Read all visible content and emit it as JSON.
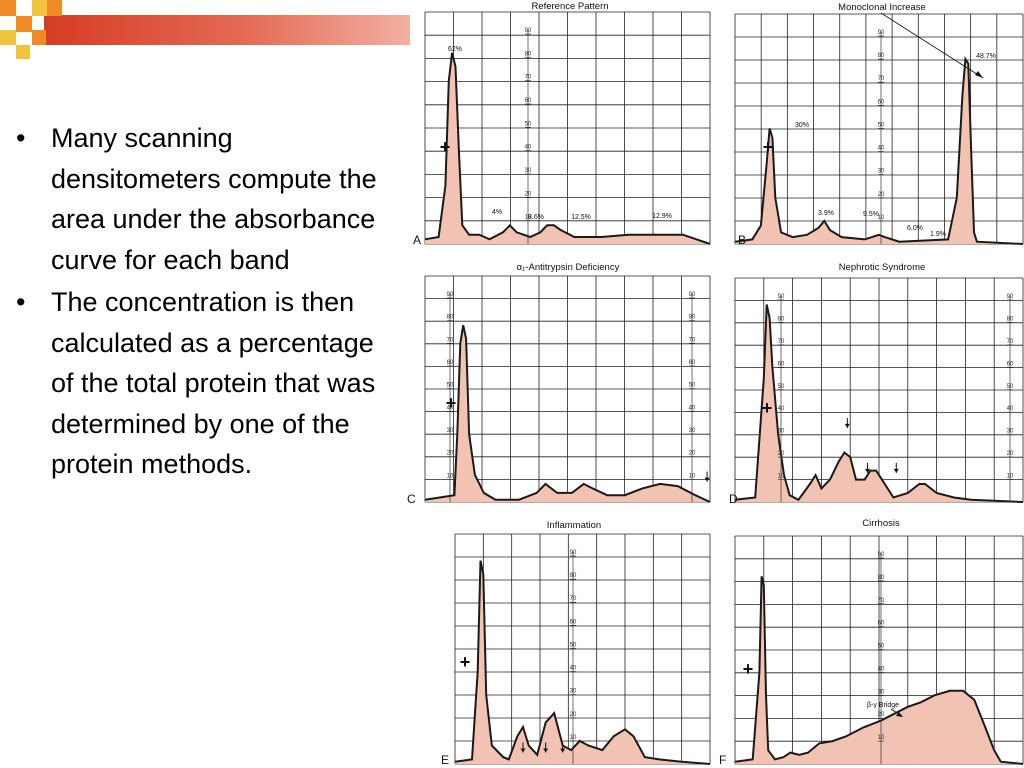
{
  "bullets": [
    "Many scanning densitometers compute the area under the absorbance curve for each band",
    "The concentration is then calculated as a percentage of the total protein that was determined by one of the protein methods."
  ],
  "colors": {
    "title_bar": "#d9442b",
    "deco_orange": "#f08a24",
    "deco_yellow": "#f2c43d",
    "curve_fill": "#f2c3b3"
  },
  "ticks": [
    "10",
    "20",
    "30",
    "40",
    "50",
    "60",
    "70",
    "80",
    "90"
  ],
  "panels": [
    {
      "title": "Reference Pattern",
      "letter": "A",
      "plus": "+",
      "labels": [
        "62%",
        "4%",
        "8.6%",
        "12.5%",
        "12.9%"
      ],
      "curve": [
        [
          0,
          2
        ],
        [
          4,
          3
        ],
        [
          6,
          25
        ],
        [
          7,
          70
        ],
        [
          8,
          82
        ],
        [
          9,
          76
        ],
        [
          10,
          40
        ],
        [
          11,
          8
        ],
        [
          13,
          4
        ],
        [
          16,
          4
        ],
        [
          19,
          2
        ],
        [
          23,
          5
        ],
        [
          25,
          8
        ],
        [
          27,
          5
        ],
        [
          31,
          3
        ],
        [
          34,
          5
        ],
        [
          36,
          8
        ],
        [
          38,
          8
        ],
        [
          40,
          6
        ],
        [
          44,
          3
        ],
        [
          52,
          3
        ],
        [
          60,
          4
        ],
        [
          70,
          4
        ],
        [
          76,
          4
        ],
        [
          80,
          2
        ],
        [
          84,
          0
        ]
      ]
    },
    {
      "title": "Monoclonal Increase",
      "letter": "B",
      "plus": "+",
      "labels": [
        "30%",
        "3.9%",
        "9.5%",
        "6.0%",
        "1.9%",
        "48.7%"
      ],
      "curve": [
        [
          0,
          1
        ],
        [
          6,
          2
        ],
        [
          9,
          8
        ],
        [
          11,
          35
        ],
        [
          12,
          50
        ],
        [
          13,
          46
        ],
        [
          14,
          20
        ],
        [
          16,
          5
        ],
        [
          20,
          3
        ],
        [
          25,
          4
        ],
        [
          29,
          7
        ],
        [
          31,
          10
        ],
        [
          33,
          6
        ],
        [
          37,
          3
        ],
        [
          45,
          2
        ],
        [
          50,
          4
        ],
        [
          52,
          3
        ],
        [
          57,
          1
        ],
        [
          74,
          2
        ],
        [
          77,
          20
        ],
        [
          79,
          65
        ],
        [
          80,
          80
        ],
        [
          81,
          78
        ],
        [
          82,
          40
        ],
        [
          83,
          5
        ],
        [
          84,
          1
        ],
        [
          100,
          0
        ]
      ]
    },
    {
      "title": "α₁-Antitrypsin Deficiency",
      "letter": "C",
      "plus": "+",
      "curve": [
        [
          0,
          1
        ],
        [
          10,
          3
        ],
        [
          11,
          30
        ],
        [
          12,
          70
        ],
        [
          13,
          78
        ],
        [
          14,
          72
        ],
        [
          15,
          30
        ],
        [
          17,
          12
        ],
        [
          20,
          4
        ],
        [
          24,
          1
        ],
        [
          32,
          1
        ],
        [
          38,
          4
        ],
        [
          41,
          8
        ],
        [
          45,
          4
        ],
        [
          50,
          4
        ],
        [
          54,
          8
        ],
        [
          57,
          6
        ],
        [
          62,
          3
        ],
        [
          68,
          3
        ],
        [
          74,
          6
        ],
        [
          80,
          8
        ],
        [
          86,
          7
        ],
        [
          92,
          3
        ],
        [
          97,
          0
        ]
      ]
    },
    {
      "title": "Nephrotic Syndrome",
      "letter": "D",
      "plus": "+",
      "curve": [
        [
          0,
          1
        ],
        [
          7,
          2
        ],
        [
          10,
          55
        ],
        [
          11,
          88
        ],
        [
          12,
          82
        ],
        [
          13,
          60
        ],
        [
          15,
          30
        ],
        [
          17,
          12
        ],
        [
          19,
          3
        ],
        [
          22,
          1
        ],
        [
          26,
          8
        ],
        [
          28,
          12
        ],
        [
          30,
          6
        ],
        [
          33,
          10
        ],
        [
          36,
          18
        ],
        [
          38,
          22
        ],
        [
          40,
          20
        ],
        [
          42,
          10
        ],
        [
          45,
          10
        ],
        [
          47,
          14
        ],
        [
          49,
          14
        ],
        [
          51,
          10
        ],
        [
          55,
          2
        ],
        [
          60,
          4
        ],
        [
          64,
          8
        ],
        [
          66,
          8
        ],
        [
          70,
          4
        ],
        [
          76,
          2
        ],
        [
          82,
          1
        ],
        [
          100,
          0
        ]
      ]
    },
    {
      "title": "Inflammation",
      "letter": "E",
      "plus": "+",
      "curve": [
        [
          0,
          1
        ],
        [
          6,
          2
        ],
        [
          8,
          40
        ],
        [
          9,
          88
        ],
        [
          10,
          82
        ],
        [
          11,
          30
        ],
        [
          13,
          8
        ],
        [
          17,
          3
        ],
        [
          19,
          2
        ],
        [
          22,
          12
        ],
        [
          24,
          16
        ],
        [
          26,
          8
        ],
        [
          29,
          4
        ],
        [
          32,
          18
        ],
        [
          35,
          22
        ],
        [
          38,
          8
        ],
        [
          41,
          6
        ],
        [
          44,
          10
        ],
        [
          47,
          8
        ],
        [
          52,
          6
        ],
        [
          56,
          12
        ],
        [
          60,
          15
        ],
        [
          63,
          12
        ],
        [
          67,
          3
        ],
        [
          72,
          2
        ],
        [
          80,
          1
        ],
        [
          90,
          0
        ]
      ]
    },
    {
      "title": "Cirrhosis",
      "letter": "F",
      "plus": "+",
      "annot": "β-γ Bridge",
      "curve": [
        [
          0,
          1
        ],
        [
          8,
          2
        ],
        [
          11,
          40
        ],
        [
          12,
          82
        ],
        [
          13,
          78
        ],
        [
          14,
          30
        ],
        [
          15,
          6
        ],
        [
          18,
          2
        ],
        [
          22,
          3
        ],
        [
          25,
          5
        ],
        [
          29,
          4
        ],
        [
          33,
          5
        ],
        [
          38,
          9
        ],
        [
          44,
          10
        ],
        [
          50,
          12
        ],
        [
          58,
          16
        ],
        [
          66,
          19
        ],
        [
          72,
          22
        ],
        [
          78,
          25
        ],
        [
          84,
          27
        ],
        [
          90,
          30
        ],
        [
          97,
          32
        ],
        [
          103,
          32
        ],
        [
          108,
          28
        ],
        [
          113,
          16
        ],
        [
          117,
          6
        ],
        [
          120,
          1
        ],
        [
          130,
          0
        ]
      ]
    }
  ]
}
